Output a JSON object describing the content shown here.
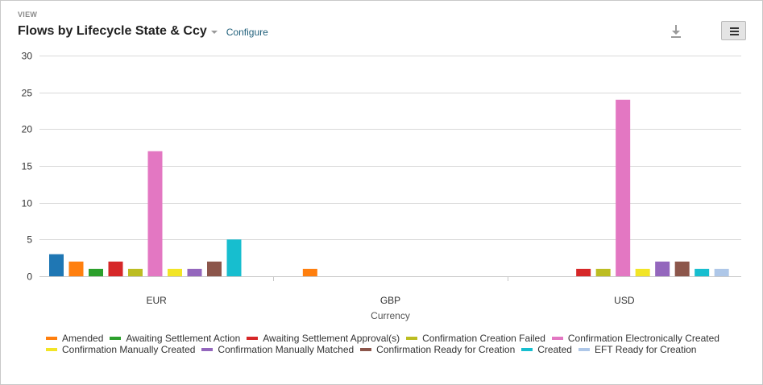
{
  "header": {
    "view_label": "VIEW",
    "title": "Flows by Lifecycle State & Ccy",
    "configure_label": "Configure"
  },
  "icons": {
    "download": "download-icon",
    "menu": "hamburger-menu-icon",
    "title_dropdown": "caret-down-icon"
  },
  "chart_data": {
    "type": "bar",
    "categories": [
      "EUR",
      "GBP",
      "USD"
    ],
    "xlabel": "Currency",
    "ylabel": "",
    "ylim": [
      0,
      30
    ],
    "yticks": [
      0,
      5,
      10,
      15,
      20,
      25,
      30
    ],
    "grid": true,
    "legend_position": "bottom",
    "series": [
      {
        "name": "",
        "color": "#1f77b4",
        "values": [
          3,
          0,
          0
        ]
      },
      {
        "name": "Amended",
        "color": "#ff7f0e",
        "values": [
          2,
          1,
          0
        ]
      },
      {
        "name": "Awaiting Settlement Action",
        "color": "#2ca02c",
        "values": [
          1,
          0,
          0
        ]
      },
      {
        "name": "Awaiting Settlement Approval(s)",
        "color": "#d62728",
        "values": [
          2,
          0,
          1
        ]
      },
      {
        "name": "Confirmation Creation Failed",
        "color": "#bcbd22",
        "values": [
          1,
          0,
          1
        ]
      },
      {
        "name": "Confirmation Electronically Created",
        "color": "#e377c2",
        "values": [
          17,
          0,
          24
        ]
      },
      {
        "name": "Confirmation Manually Created",
        "color": "#f2e526",
        "values": [
          1,
          0,
          1
        ]
      },
      {
        "name": "Confirmation Manually Matched",
        "color": "#9467bd",
        "values": [
          1,
          0,
          2
        ]
      },
      {
        "name": "Confirmation Ready for Creation",
        "color": "#8c564b",
        "values": [
          2,
          0,
          2
        ]
      },
      {
        "name": "Created",
        "color": "#17becf",
        "values": [
          5,
          0,
          1
        ]
      },
      {
        "name": "EFT Ready for Creation",
        "color": "#aec7e8",
        "values": [
          0,
          0,
          1
        ]
      }
    ]
  }
}
